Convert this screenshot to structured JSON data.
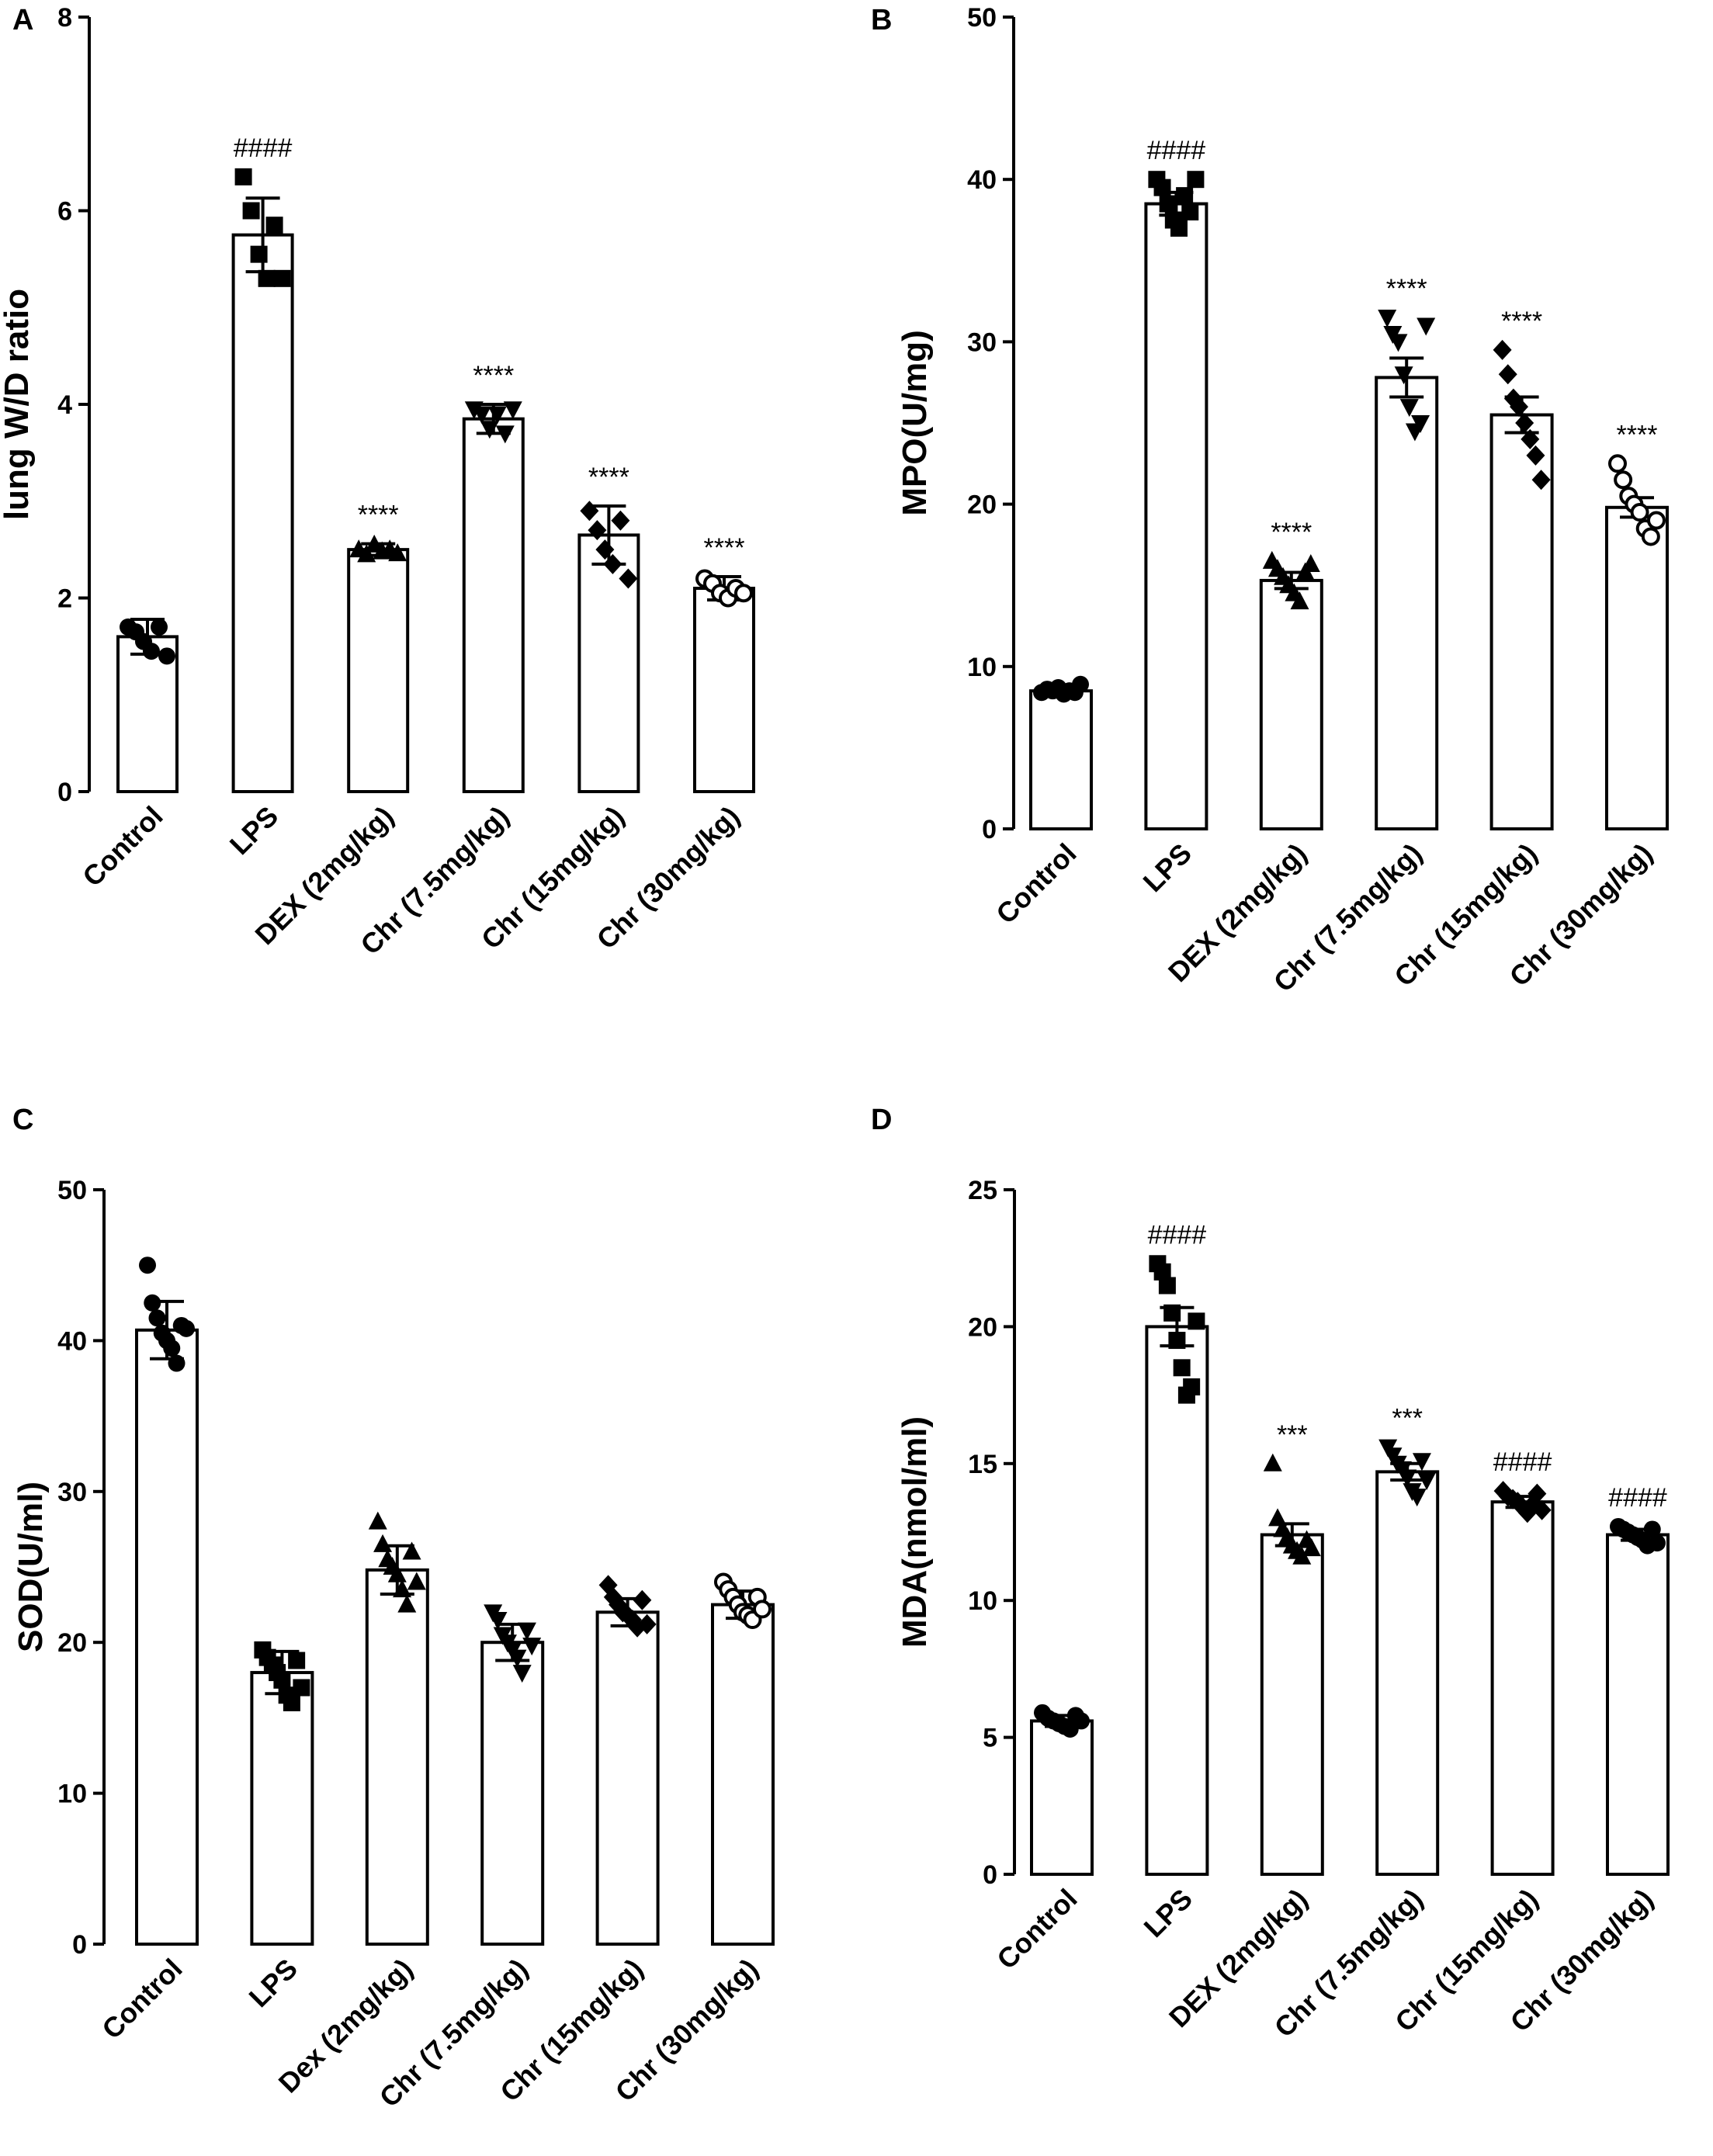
{
  "chart_data": [
    {
      "panel": "A",
      "type": "bar",
      "ylabel": "lung W/D ratio",
      "ylim": [
        0,
        8
      ],
      "yticks": [
        0,
        2,
        4,
        6,
        8
      ],
      "categories": [
        "Control",
        "LPS",
        "DEX (2mg/kg)",
        "Chr (7.5mg/kg)",
        "Chr (15mg/kg)",
        "Chr (30mg/kg)"
      ],
      "values": [
        1.6,
        5.75,
        2.5,
        3.85,
        2.65,
        2.1
      ],
      "errors": [
        0.18,
        0.38,
        0.06,
        0.15,
        0.3,
        0.12
      ],
      "markers": [
        "circle",
        "square",
        "triangle",
        "triangle-down",
        "diamond",
        "circle-open"
      ],
      "points": [
        [
          1.7,
          1.65,
          1.55,
          1.45,
          1.7,
          1.4
        ],
        [
          6.35,
          6.0,
          5.55,
          5.3,
          5.85,
          5.3
        ],
        [
          2.5,
          2.45,
          2.55,
          2.48,
          2.5,
          2.46
        ],
        [
          3.95,
          3.9,
          3.75,
          3.9,
          3.7,
          3.95
        ],
        [
          2.9,
          2.7,
          2.5,
          2.35,
          2.8,
          2.2
        ],
        [
          2.2,
          2.15,
          2.05,
          2.0,
          2.1,
          2.05
        ]
      ],
      "significance": [
        "",
        "####",
        "****",
        "****",
        "****",
        "****"
      ]
    },
    {
      "panel": "B",
      "type": "bar",
      "ylabel": "MPO(U/mg)",
      "ylim": [
        0,
        50
      ],
      "yticks": [
        0,
        10,
        20,
        30,
        40,
        50
      ],
      "categories": [
        "Control",
        "LPS",
        "DEX (2mg/kg)",
        "Chr (7.5mg/kg)",
        "Chr (15mg/kg)",
        "Chr (30mg/kg)"
      ],
      "values": [
        8.5,
        38.5,
        15.3,
        27.8,
        25.5,
        19.8
      ],
      "errors": [
        0.2,
        0.7,
        0.5,
        1.2,
        1.1,
        0.6
      ],
      "markers": [
        "circle",
        "square",
        "triangle",
        "triangle-down",
        "diamond",
        "circle-open"
      ],
      "points": [
        [
          8.4,
          8.6,
          8.5,
          8.7,
          8.3,
          8.5,
          8.4,
          8.9
        ],
        [
          40.0,
          39.5,
          38.5,
          37.5,
          37.0,
          39.0,
          38.0,
          40.0
        ],
        [
          16.5,
          16.0,
          15.5,
          15.0,
          14.5,
          14.0,
          15.8,
          16.3
        ],
        [
          31.5,
          30.5,
          30.0,
          28.0,
          26.0,
          24.5,
          25.0,
          31.0
        ],
        [
          29.5,
          28.0,
          26.5,
          26.0,
          25.0,
          24.0,
          23.0,
          21.5
        ],
        [
          22.5,
          21.5,
          20.5,
          20.0,
          19.5,
          18.5,
          18.0,
          19.0
        ]
      ],
      "significance": [
        "",
        "####",
        "****",
        "****",
        "****",
        "****"
      ]
    },
    {
      "panel": "C",
      "type": "bar",
      "ylabel": "SOD(U/ml)",
      "ylim": [
        0,
        50
      ],
      "yticks": [
        0,
        10,
        20,
        30,
        40,
        50
      ],
      "categories": [
        "Control",
        "LPS",
        "Dex (2mg/kg)",
        "Chr (7.5mg/kg)",
        "Chr (15mg/kg)",
        "Chr (30mg/kg)"
      ],
      "values": [
        40.7,
        18.0,
        24.8,
        20.0,
        22.0,
        22.5
      ],
      "errors": [
        1.9,
        1.4,
        1.6,
        1.2,
        0.9,
        0.9
      ],
      "markers": [
        "circle",
        "square",
        "triangle",
        "triangle-down",
        "diamond",
        "circle-open"
      ],
      "points": [
        [
          45.0,
          42.5,
          41.5,
          40.5,
          40.0,
          39.5,
          38.5,
          41.0,
          40.8
        ],
        [
          19.5,
          19.0,
          18.5,
          18.0,
          17.5,
          16.5,
          16.0,
          18.8,
          17.0
        ],
        [
          28.0,
          26.5,
          25.5,
          25.0,
          24.5,
          23.5,
          22.5,
          26.0,
          24.0
        ],
        [
          22.0,
          21.5,
          20.5,
          20.0,
          19.5,
          19.0,
          18.0,
          20.8,
          19.8
        ],
        [
          23.8,
          23.0,
          22.5,
          22.0,
          21.8,
          21.5,
          21.0,
          22.8,
          21.2
        ],
        [
          24.0,
          23.5,
          23.0,
          22.5,
          22.0,
          21.8,
          21.5,
          23.0,
          22.2
        ]
      ],
      "significance": [
        "",
        "",
        "",
        "",
        "",
        ""
      ]
    },
    {
      "panel": "D",
      "type": "bar",
      "ylabel": "MDA(nmol/ml)",
      "ylim": [
        0,
        25
      ],
      "yticks": [
        0,
        5,
        10,
        15,
        20,
        25
      ],
      "categories": [
        "Control",
        "LPS",
        "DEX (2mg/kg)",
        "Chr (7.5mg/kg)",
        "Chr (15mg/kg)",
        "Chr (30mg/kg)"
      ],
      "values": [
        5.6,
        20.0,
        12.4,
        14.7,
        13.6,
        12.4
      ],
      "errors": [
        0.2,
        0.7,
        0.4,
        0.3,
        0.2,
        0.2
      ],
      "markers": [
        "circle",
        "square",
        "triangle",
        "triangle-down",
        "diamond",
        "circle"
      ],
      "points": [
        [
          5.9,
          5.7,
          5.6,
          5.5,
          5.4,
          5.3,
          5.8,
          5.6
        ],
        [
          22.3,
          22.0,
          21.5,
          20.5,
          19.5,
          18.5,
          17.5,
          17.8,
          20.2
        ],
        [
          15.0,
          13.0,
          12.6,
          12.3,
          12.0,
          11.8,
          11.6,
          12.2,
          11.9
        ],
        [
          15.6,
          15.3,
          15.0,
          14.8,
          14.5,
          14.0,
          13.8,
          15.1,
          14.4
        ],
        [
          14.0,
          13.8,
          13.7,
          13.6,
          13.4,
          13.2,
          13.5,
          13.9,
          13.3
        ],
        [
          12.7,
          12.6,
          12.5,
          12.4,
          12.3,
          12.2,
          12.0,
          12.6,
          12.1
        ]
      ],
      "significance": [
        "",
        "####",
        "***",
        "***",
        "####",
        "####"
      ]
    }
  ]
}
